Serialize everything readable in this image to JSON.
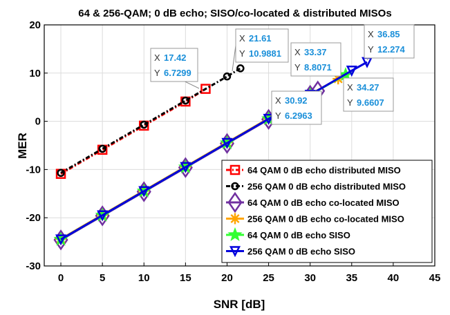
{
  "chart_data": {
    "type": "line",
    "title": "64 & 256-QAM; 0 dB echo; SISO/co-located & distributed MISOs",
    "xlabel": "SNR [dB]",
    "ylabel": "MER",
    "xlim": [
      -2,
      45
    ],
    "ylim": [
      -30,
      20
    ],
    "xticks": [
      "0",
      "5",
      "10",
      "15",
      "20",
      "25",
      "30",
      "35",
      "40",
      "45"
    ],
    "yticks": [
      "20",
      "10",
      "0",
      "-10",
      "-20",
      "-30"
    ],
    "grid": true,
    "legend_position": "lower-right",
    "series": [
      {
        "name": "64 QAM   0 dB echo distributed MISO",
        "color": "#ff0000",
        "marker": "square",
        "dash": "6,3,2,3",
        "x": [
          0,
          5,
          10,
          15,
          17.42
        ],
        "y": [
          -10.9,
          -5.9,
          -0.9,
          4.1,
          6.7299
        ]
      },
      {
        "name": "256 QAM 0 dB echo distributed MISO",
        "color": "#000000",
        "marker": "circle",
        "dash": "6,3,2,3",
        "x": [
          0,
          5,
          10,
          15,
          20,
          21.61
        ],
        "y": [
          -10.7,
          -5.7,
          -0.7,
          4.3,
          9.3,
          10.9881
        ]
      },
      {
        "name": "64 QAM   0 dB echo co-located MISO",
        "color": "#7030a0",
        "marker": "diamond",
        "dash": "",
        "x": [
          0,
          5,
          10,
          15,
          20,
          25,
          30,
          30.92
        ],
        "y": [
          -24.6,
          -19.6,
          -14.6,
          -9.6,
          -4.6,
          0.4,
          5.4,
          6.2963
        ]
      },
      {
        "name": "256 QAM 0 dB echo co-located MISO",
        "color": "#ffa500",
        "marker": "asterisk",
        "dash": "",
        "x": [
          0,
          5,
          10,
          15,
          20,
          25,
          30,
          33.37
        ],
        "y": [
          -24.4,
          -19.4,
          -14.4,
          -9.4,
          -4.4,
          0.6,
          5.6,
          8.8071
        ]
      },
      {
        "name": "64 QAM   0 dB echo SISO",
        "color": "#33ff33",
        "marker": "star",
        "dash": "",
        "x": [
          0,
          5,
          10,
          15,
          20,
          25,
          30,
          34.27
        ],
        "y": [
          -24.5,
          -19.5,
          -14.5,
          -9.5,
          -4.5,
          0.5,
          5.5,
          9.6607
        ]
      },
      {
        "name": "256 QAM 0 dB echo SISO",
        "color": "#0000dd",
        "marker": "triangle-down",
        "dash": "",
        "x": [
          0,
          5,
          10,
          15,
          20,
          25,
          30,
          35,
          36.85
        ],
        "y": [
          -24.5,
          -19.5,
          -14.5,
          -9.5,
          -4.5,
          0.5,
          5.5,
          10.5,
          12.274
        ]
      }
    ],
    "datatips": [
      {
        "x_label": "X",
        "x_value": "17.42",
        "y_label": "Y",
        "y_value": "6.7299"
      },
      {
        "x_label": "X",
        "x_value": "21.61",
        "y_label": "Y",
        "y_value": "10.9881"
      },
      {
        "x_label": "X",
        "x_value": "33.37",
        "y_label": "Y",
        "y_value": "8.8071"
      },
      {
        "x_label": "X",
        "x_value": "36.85",
        "y_label": "Y",
        "y_value": "12.274"
      },
      {
        "x_label": "X",
        "x_value": "34.27",
        "y_label": "Y",
        "y_value": "9.6607"
      },
      {
        "x_label": "X",
        "x_value": "30.92",
        "y_label": "Y",
        "y_value": "6.2963"
      }
    ]
  }
}
